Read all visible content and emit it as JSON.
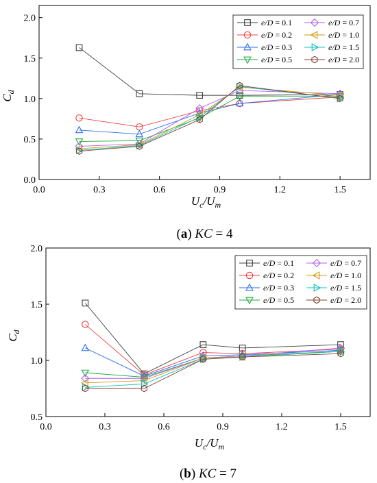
{
  "chart_data": [
    {
      "type": "line",
      "caption": {
        "letter": "a",
        "param": "KC",
        "value": "= 4"
      },
      "xlabel": {
        "main": "U",
        "sub1": "c",
        "slash": "/U",
        "sub2": "m"
      },
      "ylabel": {
        "main": "C",
        "sub": "d"
      },
      "xlim": [
        0.0,
        1.65
      ],
      "ylim": [
        0.0,
        2.15
      ],
      "xticks": [
        "0.0",
        "0.3",
        "0.6",
        "0.9",
        "1.2",
        "1.5"
      ],
      "yticks": [
        "0.0",
        "0.5",
        "1.0",
        "1.5",
        "2.0"
      ],
      "x": [
        0.2,
        0.5,
        0.8,
        1.0,
        1.5
      ],
      "legend_position": "top-right",
      "series": [
        {
          "name": "e/D = 0.1",
          "color": "#404040",
          "marker": "square",
          "values": [
            1.63,
            1.06,
            1.04,
            1.04,
            1.05
          ]
        },
        {
          "name": "e/D = 0.2",
          "color": "#f04040",
          "marker": "circle",
          "values": [
            0.76,
            0.65,
            0.85,
            0.94,
            1.02
          ]
        },
        {
          "name": "e/D = 0.3",
          "color": "#2a6ef0",
          "marker": "triangle-up",
          "values": [
            0.61,
            0.56,
            0.82,
            0.94,
            1.05
          ]
        },
        {
          "name": "e/D = 0.5",
          "color": "#1ea83c",
          "marker": "triangle-down",
          "values": [
            0.47,
            0.48,
            0.76,
            1.03,
            1.03
          ]
        },
        {
          "name": "e/D = 0.7",
          "color": "#b060f0",
          "marker": "diamond",
          "values": [
            0.41,
            0.44,
            0.88,
            1.1,
            1.06
          ]
        },
        {
          "name": "e/D = 1.0",
          "color": "#d09a10",
          "marker": "triangle-left",
          "values": [
            0.38,
            0.43,
            0.8,
            1.14,
            1.04
          ]
        },
        {
          "name": "e/D = 1.5",
          "color": "#10c0c0",
          "marker": "triangle-right",
          "values": [
            0.36,
            0.42,
            0.77,
            1.15,
            1.0
          ]
        },
        {
          "name": "e/D = 2.0",
          "color": "#804030",
          "marker": "hexagon",
          "values": [
            0.35,
            0.41,
            0.74,
            1.16,
            1.0
          ]
        }
      ]
    },
    {
      "type": "line",
      "caption": {
        "letter": "b",
        "param": "KC",
        "value": "= 7"
      },
      "xlabel": {
        "main": "U",
        "sub1": "c",
        "slash": "/U",
        "sub2": "m"
      },
      "ylabel": {
        "main": "C",
        "sub": "d"
      },
      "xlim": [
        0.0,
        1.65
      ],
      "ylim": [
        0.5,
        2.0
      ],
      "xticks": [
        "0.0",
        "0.3",
        "0.6",
        "0.9",
        "1.2",
        "1.5"
      ],
      "yticks": [
        "0.5",
        "1.0",
        "1.5",
        "2.0"
      ],
      "x": [
        0.2,
        0.5,
        0.8,
        1.0,
        1.5
      ],
      "legend_position": "top-right",
      "series": [
        {
          "name": "e/D = 0.1",
          "color": "#404040",
          "marker": "square",
          "values": [
            1.51,
            0.88,
            1.14,
            1.11,
            1.14
          ]
        },
        {
          "name": "e/D = 0.2",
          "color": "#f04040",
          "marker": "circle",
          "values": [
            1.32,
            0.87,
            1.07,
            1.06,
            1.1
          ]
        },
        {
          "name": "e/D = 0.3",
          "color": "#2a6ef0",
          "marker": "triangle-up",
          "values": [
            1.11,
            0.86,
            1.04,
            1.05,
            1.09
          ]
        },
        {
          "name": "e/D = 0.5",
          "color": "#1ea83c",
          "marker": "triangle-down",
          "values": [
            0.89,
            0.85,
            1.02,
            1.04,
            1.08
          ]
        },
        {
          "name": "e/D = 0.7",
          "color": "#b060f0",
          "marker": "diamond",
          "values": [
            0.84,
            0.84,
            1.02,
            1.04,
            1.11
          ]
        },
        {
          "name": "e/D = 1.0",
          "color": "#d09a10",
          "marker": "triangle-left",
          "values": [
            0.8,
            0.82,
            1.02,
            1.03,
            1.08
          ]
        },
        {
          "name": "e/D = 1.5",
          "color": "#10c0c0",
          "marker": "triangle-right",
          "values": [
            0.76,
            0.79,
            1.01,
            1.03,
            1.08
          ]
        },
        {
          "name": "e/D = 2.0",
          "color": "#804030",
          "marker": "hexagon",
          "values": [
            0.75,
            0.75,
            1.01,
            1.03,
            1.06
          ]
        }
      ]
    }
  ]
}
